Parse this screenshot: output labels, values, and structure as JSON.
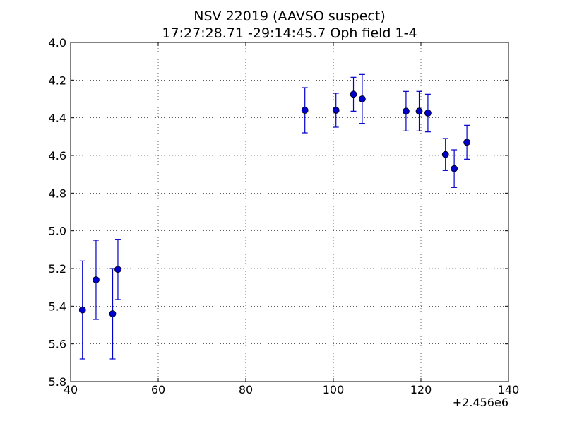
{
  "chart_data": {
    "type": "scatter",
    "title_lines": [
      "NSV 22019 (AAVSO suspect)",
      "17:27:28.71 -29:14:45.7 Oph field 1-4"
    ],
    "x_offset_label": "+2.456e6",
    "xlim": [
      40,
      140
    ],
    "ylim": [
      4.0,
      5.8
    ],
    "y_inverted": true,
    "x_ticks": [
      40,
      60,
      80,
      100,
      120,
      140
    ],
    "y_ticks": [
      "4.0",
      "4.2",
      "4.4",
      "4.6",
      "4.8",
      "5.0",
      "5.2",
      "5.4",
      "5.6",
      "5.8"
    ],
    "grid": true,
    "marker_color": "#0000cc",
    "points": [
      {
        "x": 42.7,
        "y": 5.42,
        "err": 0.26
      },
      {
        "x": 45.8,
        "y": 5.26,
        "err": 0.21
      },
      {
        "x": 49.6,
        "y": 5.44,
        "err": 0.24
      },
      {
        "x": 50.8,
        "y": 5.205,
        "err": 0.16
      },
      {
        "x": 93.5,
        "y": 4.36,
        "err": 0.12
      },
      {
        "x": 100.6,
        "y": 4.36,
        "err": 0.09
      },
      {
        "x": 104.6,
        "y": 4.275,
        "err": 0.09
      },
      {
        "x": 106.6,
        "y": 4.3,
        "err": 0.13
      },
      {
        "x": 116.6,
        "y": 4.365,
        "err": 0.105
      },
      {
        "x": 119.6,
        "y": 4.365,
        "err": 0.105
      },
      {
        "x": 121.6,
        "y": 4.375,
        "err": 0.1
      },
      {
        "x": 125.6,
        "y": 4.595,
        "err": 0.085
      },
      {
        "x": 127.6,
        "y": 4.67,
        "err": 0.1
      },
      {
        "x": 130.5,
        "y": 4.53,
        "err": 0.09
      }
    ]
  }
}
